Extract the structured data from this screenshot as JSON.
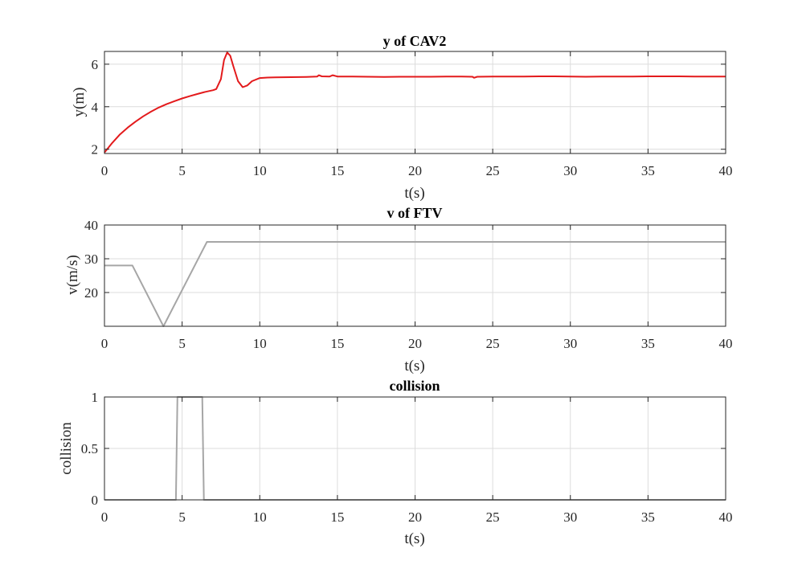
{
  "chart_data": [
    {
      "type": "line",
      "title": "y of CAV2",
      "xlabel": "t(s)",
      "ylabel": "y(m)",
      "xlim": [
        0,
        40
      ],
      "ylim": [
        1.8,
        6.6
      ],
      "xticks": [
        0,
        5,
        10,
        15,
        20,
        25,
        30,
        35,
        40
      ],
      "yticks": [
        2,
        4,
        6
      ],
      "grid": true,
      "series": [
        {
          "color": "#e31a1c",
          "x": [
            0,
            0.5,
            1,
            1.5,
            2,
            2.5,
            3,
            3.5,
            4,
            4.5,
            5,
            5.5,
            6,
            6.5,
            7,
            7.2,
            7.5,
            7.7,
            7.9,
            8.1,
            8.3,
            8.6,
            8.9,
            9.2,
            9.5,
            10,
            10.5,
            11,
            12,
            13,
            13.7,
            13.8,
            14,
            14.5,
            14.7,
            15,
            16,
            17,
            18,
            19,
            20,
            21,
            22,
            23,
            23.7,
            23.8,
            24,
            25,
            26,
            27,
            28,
            29,
            30,
            31,
            32,
            33,
            34,
            35,
            36,
            37,
            38,
            39,
            40
          ],
          "y": [
            1.85,
            2.3,
            2.7,
            3.02,
            3.3,
            3.55,
            3.77,
            3.96,
            4.12,
            4.26,
            4.39,
            4.5,
            4.6,
            4.7,
            4.78,
            4.83,
            5.3,
            6.2,
            6.55,
            6.4,
            5.9,
            5.2,
            4.92,
            5.0,
            5.2,
            5.35,
            5.37,
            5.38,
            5.39,
            5.4,
            5.42,
            5.48,
            5.43,
            5.42,
            5.48,
            5.42,
            5.42,
            5.41,
            5.4,
            5.41,
            5.41,
            5.41,
            5.42,
            5.42,
            5.41,
            5.36,
            5.41,
            5.42,
            5.42,
            5.42,
            5.43,
            5.43,
            5.42,
            5.41,
            5.42,
            5.42,
            5.42,
            5.43,
            5.43,
            5.43,
            5.42,
            5.42,
            5.42
          ]
        }
      ]
    },
    {
      "type": "line",
      "title": "v of FTV",
      "xlabel": "t(s)",
      "ylabel": "v(m/s)",
      "xlim": [
        0,
        40
      ],
      "ylim": [
        10,
        40
      ],
      "xticks": [
        0,
        5,
        10,
        15,
        20,
        25,
        30,
        35,
        40
      ],
      "yticks": [
        20,
        30,
        40
      ],
      "grid": true,
      "series": [
        {
          "color": "#a6a6a6",
          "x": [
            0,
            1.8,
            3.8,
            6.6,
            40
          ],
          "y": [
            28,
            28,
            10,
            35,
            35
          ]
        }
      ]
    },
    {
      "type": "line",
      "title": "collision",
      "xlabel": "t(s)",
      "ylabel": "collision",
      "xlim": [
        0,
        40
      ],
      "ylim": [
        0,
        1
      ],
      "xticks": [
        0,
        5,
        10,
        15,
        20,
        25,
        30,
        35,
        40
      ],
      "yticks": [
        0,
        0.5,
        1
      ],
      "grid": true,
      "series": [
        {
          "color": "#a6a6a6",
          "x": [
            0,
            4.6,
            4.7,
            6.3,
            6.4,
            40
          ],
          "y": [
            0,
            0,
            1,
            1,
            0,
            0
          ]
        }
      ]
    }
  ]
}
